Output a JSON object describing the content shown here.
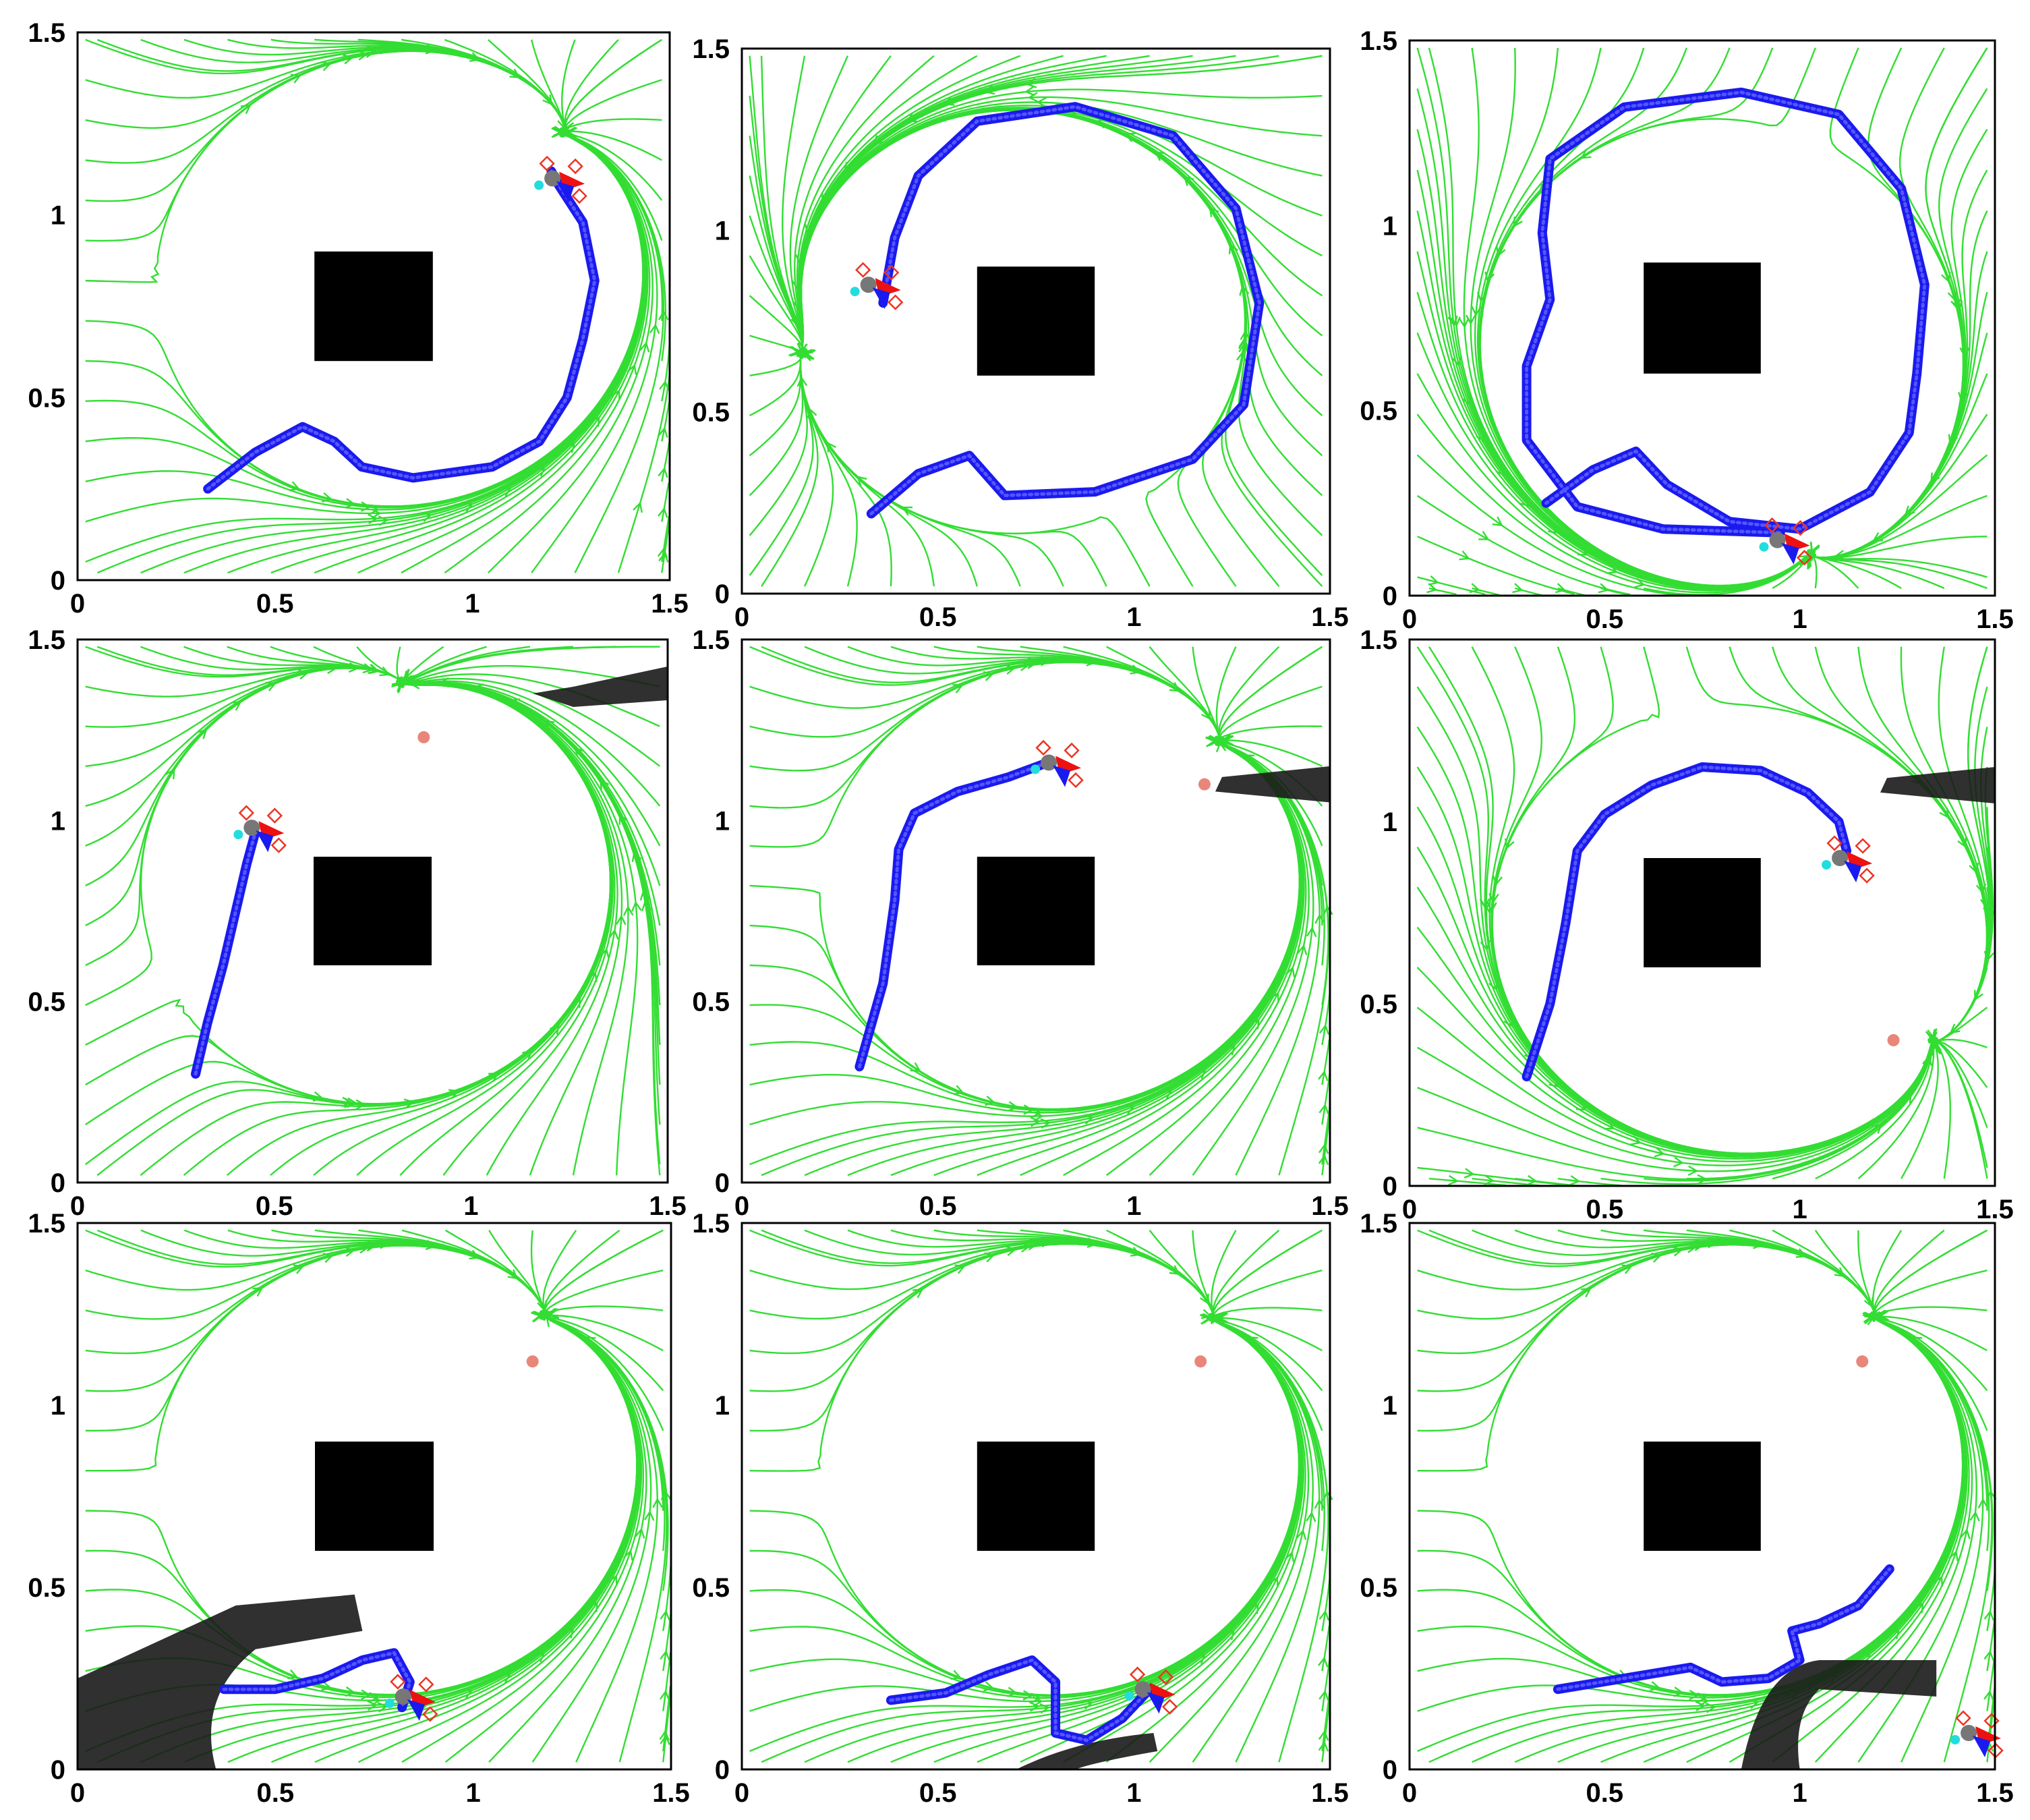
{
  "chart_data": [
    {
      "type": "streamplot",
      "panel": "r1c1",
      "xlim": [
        0,
        1.5
      ],
      "ylim": [
        0,
        1.5
      ],
      "x_ticks": [
        "0",
        "0.5",
        "1",
        "1.5"
      ],
      "y_ticks": [
        "0",
        "0.5",
        "1",
        "1.5"
      ],
      "obstacle": {
        "x": [
          0.6,
          0.9
        ],
        "y": [
          0.6,
          0.9
        ]
      },
      "trajectory": [
        [
          0.33,
          0.25
        ],
        [
          0.45,
          0.35
        ],
        [
          0.57,
          0.42
        ],
        [
          0.65,
          0.38
        ],
        [
          0.72,
          0.31
        ],
        [
          0.85,
          0.28
        ],
        [
          1.05,
          0.31
        ],
        [
          1.17,
          0.38
        ],
        [
          1.24,
          0.5
        ],
        [
          1.28,
          0.66
        ],
        [
          1.31,
          0.82
        ],
        [
          1.28,
          0.98
        ],
        [
          1.22,
          1.08
        ],
        [
          1.2,
          1.12
        ]
      ],
      "goal": null,
      "human": null,
      "robot": [
        1.22,
        1.1
      ]
    },
    {
      "type": "streamplot",
      "panel": "r1c2",
      "xlim": [
        0,
        1.5
      ],
      "ylim": [
        0,
        1.5
      ],
      "x_ticks": [
        "0",
        "0.5",
        "1",
        "1.5"
      ],
      "y_ticks": [
        "0",
        "0.5",
        "1",
        "1.5"
      ],
      "obstacle": {
        "x": [
          0.6,
          0.9
        ],
        "y": [
          0.6,
          0.9
        ]
      },
      "trajectory": [
        [
          0.33,
          0.22
        ],
        [
          0.45,
          0.33
        ],
        [
          0.58,
          0.38
        ],
        [
          0.67,
          0.27
        ],
        [
          0.9,
          0.28
        ],
        [
          1.15,
          0.37
        ],
        [
          1.28,
          0.52
        ],
        [
          1.32,
          0.8
        ],
        [
          1.26,
          1.06
        ],
        [
          1.1,
          1.26
        ],
        [
          0.85,
          1.34
        ],
        [
          0.6,
          1.3
        ],
        [
          0.45,
          1.15
        ],
        [
          0.39,
          0.98
        ],
        [
          0.36,
          0.8
        ]
      ],
      "goal": null,
      "human": null,
      "robot": [
        0.34,
        0.85
      ]
    },
    {
      "type": "streamplot",
      "panel": "r1c3",
      "xlim": [
        0,
        1.5
      ],
      "ylim": [
        0,
        1.5
      ],
      "x_ticks": [
        "0",
        "0.5",
        "1",
        "1.5"
      ],
      "y_ticks": [
        "0",
        "0.5",
        "1",
        "1.5"
      ],
      "obstacle": {
        "x": [
          0.6,
          0.9
        ],
        "y": [
          0.6,
          0.9
        ]
      },
      "trajectory": [
        [
          0.35,
          0.25
        ],
        [
          0.47,
          0.34
        ],
        [
          0.58,
          0.39
        ],
        [
          0.66,
          0.3
        ],
        [
          0.82,
          0.2
        ],
        [
          1.0,
          0.18
        ],
        [
          1.18,
          0.28
        ],
        [
          1.28,
          0.44
        ],
        [
          1.3,
          0.6
        ],
        [
          1.32,
          0.84
        ],
        [
          1.26,
          1.1
        ],
        [
          1.1,
          1.3
        ],
        [
          0.85,
          1.36
        ],
        [
          0.55,
          1.32
        ],
        [
          0.36,
          1.18
        ],
        [
          0.34,
          0.98
        ],
        [
          0.36,
          0.8
        ],
        [
          0.3,
          0.62
        ],
        [
          0.3,
          0.42
        ],
        [
          0.43,
          0.24
        ],
        [
          0.65,
          0.18
        ],
        [
          0.95,
          0.17
        ]
      ],
      "goal": null,
      "human": null,
      "robot": [
        0.96,
        0.15
      ]
    },
    {
      "type": "streamplot",
      "panel": "r2c1",
      "xlim": [
        0,
        1.5
      ],
      "ylim": [
        0,
        1.5
      ],
      "x_ticks": [
        "0",
        "0.5",
        "1",
        "1.5"
      ],
      "y_ticks": [
        "0",
        "0.5",
        "1",
        "1.5"
      ],
      "obstacle": {
        "x": [
          0.6,
          0.9
        ],
        "y": [
          0.6,
          0.9
        ]
      },
      "trajectory": [
        [
          0.3,
          0.3
        ],
        [
          0.33,
          0.44
        ],
        [
          0.37,
          0.6
        ],
        [
          0.4,
          0.74
        ],
        [
          0.43,
          0.88
        ],
        [
          0.45,
          0.96
        ]
      ],
      "goal": [
        0.88,
        1.23
      ],
      "human": "top-right",
      "robot": [
        0.46,
        0.98
      ]
    },
    {
      "type": "streamplot",
      "panel": "r2c2",
      "xlim": [
        0,
        1.5
      ],
      "ylim": [
        0,
        1.5
      ],
      "x_ticks": [
        "0",
        "0.5",
        "1",
        "1.5"
      ],
      "y_ticks": [
        "0",
        "0.5",
        "1",
        "1.5"
      ],
      "obstacle": {
        "x": [
          0.6,
          0.9
        ],
        "y": [
          0.6,
          0.9
        ]
      },
      "trajectory": [
        [
          0.3,
          0.32
        ],
        [
          0.36,
          0.55
        ],
        [
          0.39,
          0.78
        ],
        [
          0.4,
          0.92
        ],
        [
          0.44,
          1.02
        ],
        [
          0.55,
          1.08
        ],
        [
          0.68,
          1.12
        ],
        [
          0.78,
          1.16
        ]
      ],
      "goal": [
        1.18,
        1.1
      ],
      "human": "right",
      "robot": [
        0.8,
        1.16
      ]
    },
    {
      "type": "streamplot",
      "panel": "r2c3",
      "xlim": [
        0,
        1.5
      ],
      "ylim": [
        0,
        1.5
      ],
      "x_ticks": [
        "0",
        "0.5",
        "1",
        "1.5"
      ],
      "y_ticks": [
        "0",
        "0.5",
        "1",
        "1.5"
      ],
      "obstacle": {
        "x": [
          0.6,
          0.9
        ],
        "y": [
          0.6,
          0.9
        ]
      },
      "trajectory": [
        [
          0.3,
          0.3
        ],
        [
          0.36,
          0.5
        ],
        [
          0.4,
          0.72
        ],
        [
          0.43,
          0.92
        ],
        [
          0.5,
          1.02
        ],
        [
          0.62,
          1.1
        ],
        [
          0.75,
          1.15
        ],
        [
          0.9,
          1.14
        ],
        [
          1.02,
          1.08
        ],
        [
          1.1,
          1.0
        ],
        [
          1.12,
          0.92
        ]
      ],
      "goal": [
        1.24,
        0.4
      ],
      "human": "right",
      "robot": [
        1.12,
        0.9
      ]
    },
    {
      "type": "streamplot",
      "panel": "r3c1",
      "xlim": [
        0,
        1.5
      ],
      "ylim": [
        0,
        1.5
      ],
      "x_ticks": [
        "0",
        "0.5",
        "1",
        "1.5"
      ],
      "y_ticks": [
        "0",
        "0.5",
        "1",
        "1.5"
      ],
      "obstacle": {
        "x": [
          0.6,
          0.9
        ],
        "y": [
          0.6,
          0.9
        ]
      },
      "trajectory": [
        [
          0.37,
          0.22
        ],
        [
          0.5,
          0.22
        ],
        [
          0.62,
          0.25
        ],
        [
          0.72,
          0.3
        ],
        [
          0.8,
          0.32
        ],
        [
          0.84,
          0.24
        ],
        [
          0.82,
          0.17
        ]
      ],
      "goal": [
        1.15,
        1.12
      ],
      "human": "bottom-left",
      "robot": [
        0.84,
        0.2
      ]
    },
    {
      "type": "streamplot",
      "panel": "r3c2",
      "xlim": [
        0,
        1.5
      ],
      "ylim": [
        0,
        1.5
      ],
      "x_ticks": [
        "0",
        "0.5",
        "1",
        "1.5"
      ],
      "y_ticks": [
        "0",
        "0.5",
        "1",
        "1.5"
      ],
      "obstacle": {
        "x": [
          0.6,
          0.9
        ],
        "y": [
          0.6,
          0.9
        ]
      },
      "trajectory": [
        [
          0.38,
          0.19
        ],
        [
          0.52,
          0.21
        ],
        [
          0.63,
          0.26
        ],
        [
          0.74,
          0.3
        ],
        [
          0.8,
          0.24
        ],
        [
          0.8,
          0.1
        ],
        [
          0.88,
          0.08
        ],
        [
          0.97,
          0.14
        ],
        [
          1.04,
          0.22
        ]
      ],
      "goal": [
        1.17,
        1.12
      ],
      "human": "bottom",
      "robot": [
        1.04,
        0.22
      ]
    },
    {
      "type": "streamplot",
      "panel": "r3c3",
      "xlim": [
        0,
        1.5
      ],
      "ylim": [
        0,
        1.5
      ],
      "x_ticks": [
        "0",
        "0.5",
        "1",
        "1.5"
      ],
      "y_ticks": [
        "0",
        "0.5",
        "1",
        "1.5"
      ],
      "obstacle": {
        "x": [
          0.6,
          0.9
        ],
        "y": [
          0.6,
          0.9
        ]
      },
      "trajectory": [
        [
          0.38,
          0.22
        ],
        [
          0.55,
          0.25
        ],
        [
          0.72,
          0.28
        ],
        [
          0.8,
          0.24
        ],
        [
          0.92,
          0.25
        ],
        [
          1.0,
          0.3
        ],
        [
          0.98,
          0.38
        ],
        [
          1.05,
          0.4
        ],
        [
          1.15,
          0.45
        ],
        [
          1.23,
          0.55
        ]
      ],
      "goal": [
        1.16,
        1.12
      ],
      "human": "bottom-right",
      "robot": [
        1.45,
        0.1
      ]
    }
  ],
  "colors": {
    "stream": "#33dd33",
    "trajectory": "#1a1aee",
    "obstacle": "#000000",
    "goal": "#e8867a",
    "robot_arrow_red": "#ee1111",
    "marker_cyan": "#22dddd"
  }
}
